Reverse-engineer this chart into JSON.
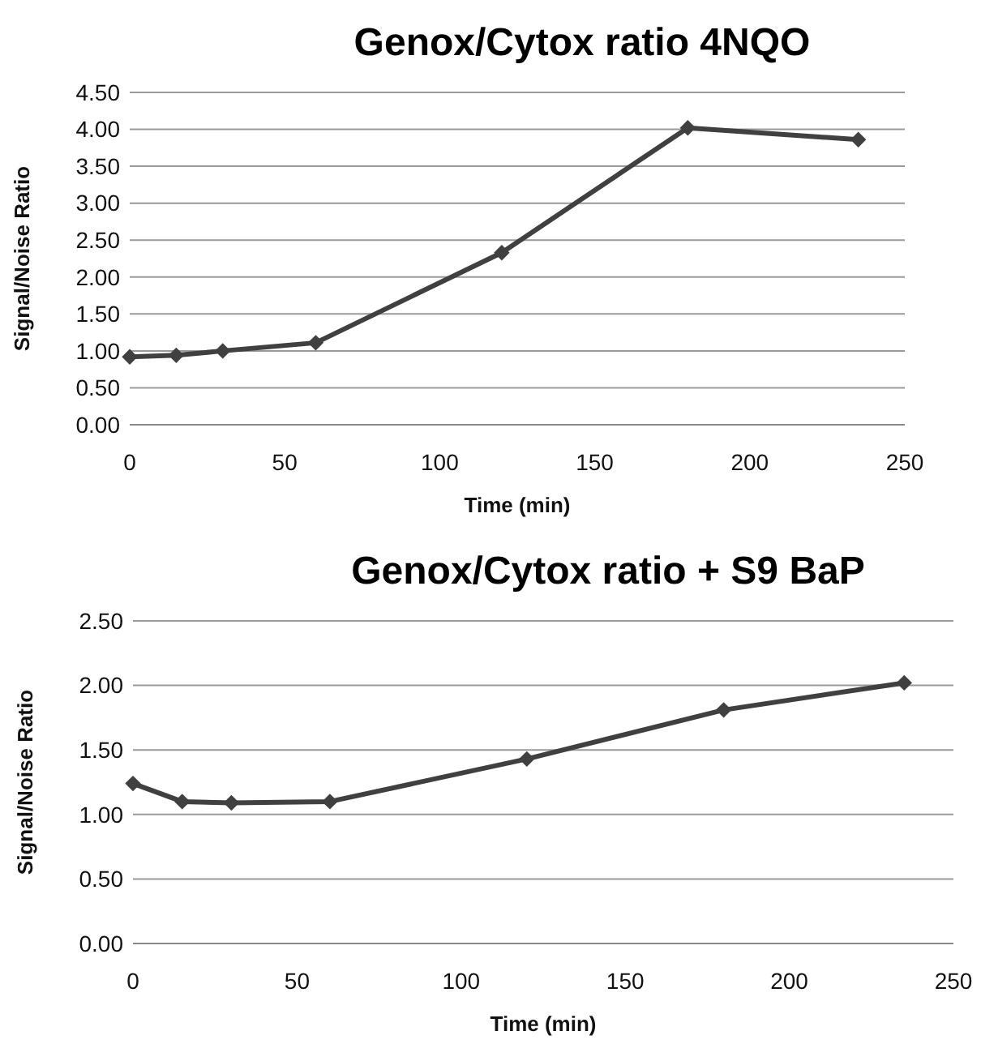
{
  "chart_data": [
    {
      "type": "line",
      "title": "Genox/Cytox ratio 4NQO",
      "xlabel": "Time (min)",
      "ylabel": "Signal/Noise Ratio",
      "x": [
        0,
        15,
        30,
        60,
        120,
        180,
        235
      ],
      "series": [
        {
          "color": "#404040",
          "values": [
            0.92,
            0.94,
            1.0,
            1.11,
            2.33,
            4.02,
            3.86
          ]
        }
      ],
      "xlim": [
        0,
        250
      ],
      "xticks": [
        0,
        50,
        100,
        150,
        200,
        250
      ],
      "ylim": [
        0,
        4.5
      ],
      "yticks": [
        {
          "value": 0,
          "label": "0.00"
        },
        {
          "value": 0.5,
          "label": "0.50"
        },
        {
          "value": 1,
          "label": "1.00"
        },
        {
          "value": 1.5,
          "label": "1.50"
        },
        {
          "value": 2,
          "label": "2.00"
        },
        {
          "value": 2.5,
          "label": "2.50"
        },
        {
          "value": 3,
          "label": "3.00"
        },
        {
          "value": 3.5,
          "label": "3.50"
        },
        {
          "value": 4,
          "label": "4.00"
        },
        {
          "value": 4.5,
          "label": "4.50"
        }
      ],
      "grid": "y",
      "marker": "diamond",
      "line_style": "solid"
    },
    {
      "type": "line",
      "title": "Genox/Cytox ratio + S9 BaP",
      "xlabel": "Time (min)",
      "ylabel": "Signal/Noise Ratio",
      "x": [
        0,
        15,
        30,
        60,
        120,
        180,
        235
      ],
      "series": [
        {
          "color": "#404040",
          "values": [
            1.24,
            1.1,
            1.09,
            1.1,
            1.43,
            1.81,
            2.02
          ]
        }
      ],
      "xlim": [
        0,
        250
      ],
      "xticks": [
        0,
        50,
        100,
        150,
        200,
        250
      ],
      "ylim": [
        0,
        2.5
      ],
      "yticks": [
        {
          "value": 0,
          "label": "0.00"
        },
        {
          "value": 0.5,
          "label": "0.50"
        },
        {
          "value": 1,
          "label": "1.00"
        },
        {
          "value": 1.5,
          "label": "1.50"
        },
        {
          "value": 2,
          "label": "2.00"
        },
        {
          "value": 2.5,
          "label": "2.50"
        }
      ],
      "grid": "y",
      "marker": "diamond",
      "line_style": "solid"
    }
  ]
}
